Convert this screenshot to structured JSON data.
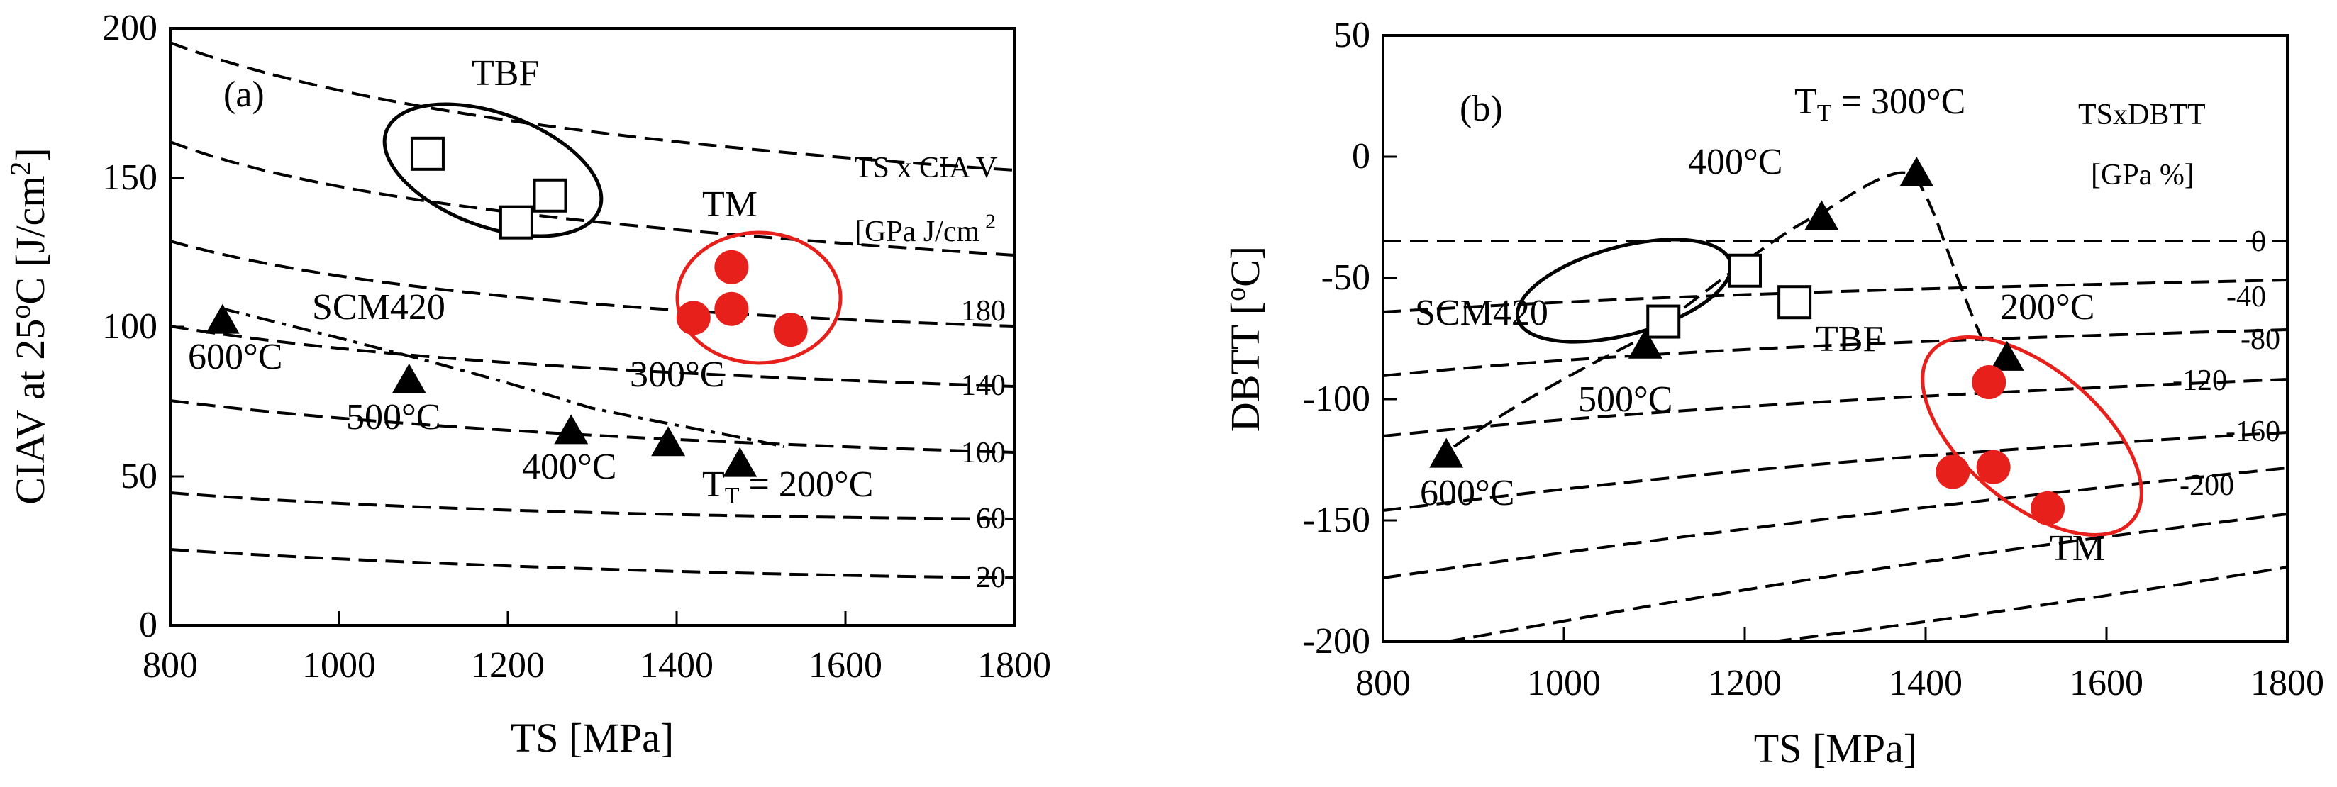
{
  "chart_data": [
    {
      "panel": "(a)",
      "type": "scatter",
      "xlabel": "TS [MPa]",
      "ylabel": "CIAV at 25oC [J/cm2]",
      "ylabel_parts": {
        "pre": "CIAV at 25",
        "deg": "o",
        "mid": "C [J/cm",
        "sup": "2",
        "post": "]"
      },
      "xlim": [
        800,
        1800
      ],
      "ylim": [
        0,
        200
      ],
      "xticks": [
        "800",
        "1000",
        "1200",
        "1400",
        "1600",
        "1800"
      ],
      "yticks": [
        "0",
        "50",
        "100",
        "150",
        "200"
      ],
      "series": [
        {
          "name": "SCM420",
          "marker": "filled-triangle",
          "points": [
            {
              "x": 862,
              "y": 102,
              "label": "600°C"
            },
            {
              "x": 1083,
              "y": 82,
              "label": "500°C"
            },
            {
              "x": 1275,
              "y": 65,
              "label": "400°C"
            },
            {
              "x": 1390,
              "y": 61,
              "label": "300°C"
            },
            {
              "x": 1475,
              "y": 54,
              "label": "TT = 200°C"
            }
          ]
        },
        {
          "name": "TBF",
          "marker": "open-square",
          "points": [
            {
              "x": 1105,
              "y": 158
            },
            {
              "x": 1210,
              "y": 135
            },
            {
              "x": 1250,
              "y": 144
            }
          ]
        },
        {
          "name": "TM",
          "marker": "filled-circle-red",
          "points": [
            {
              "x": 1465,
              "y": 120
            },
            {
              "x": 1420,
              "y": 103
            },
            {
              "x": 1465,
              "y": 106
            },
            {
              "x": 1535,
              "y": 99
            }
          ]
        }
      ],
      "isolines": {
        "title_line1": "TS x CIA V",
        "title_line2": "[GPa J/cm",
        "title_sup": "2",
        "labels": [
          "20",
          "60",
          "100",
          "140",
          "180"
        ]
      },
      "annotations": {
        "tbf": "TBF",
        "tm": "TM",
        "scm": "SCM420",
        "t600": "600°C",
        "t500": "500°C",
        "t400": "400°C",
        "t300": "300°C",
        "t200_prefix": "T",
        "t200_sub": "T",
        "t200_suffix": " = 200°C"
      }
    },
    {
      "panel": "(b)",
      "type": "scatter",
      "xlabel": "TS [MPa]",
      "ylabel": "DBTT [oC]",
      "ylabel_parts": {
        "pre": "DBTT [",
        "deg": "o",
        "post": "C]"
      },
      "xlim": [
        800,
        1800
      ],
      "ylim": [
        -200,
        50
      ],
      "xticks": [
        "800",
        "1000",
        "1200",
        "1400",
        "1600",
        "1800"
      ],
      "yticks": [
        "-200",
        "-150",
        "-100",
        "-50",
        "0",
        "50"
      ],
      "series": [
        {
          "name": "SCM420",
          "marker": "filled-triangle",
          "points": [
            {
              "x": 870,
              "y": -123,
              "label": "600°C"
            },
            {
              "x": 1090,
              "y": -78,
              "label": "500°C"
            },
            {
              "x": 1285,
              "y": -25,
              "label": "400°C"
            },
            {
              "x": 1390,
              "y": -7,
              "label": "TT = 300°C"
            },
            {
              "x": 1490,
              "y": -83,
              "label": "200°C"
            }
          ]
        },
        {
          "name": "TBF",
          "marker": "open-square",
          "points": [
            {
              "x": 1110,
              "y": -68
            },
            {
              "x": 1200,
              "y": -47
            },
            {
              "x": 1255,
              "y": -60
            }
          ]
        },
        {
          "name": "TM",
          "marker": "filled-circle-red",
          "points": [
            {
              "x": 1470,
              "y": -93
            },
            {
              "x": 1430,
              "y": -130
            },
            {
              "x": 1475,
              "y": -128
            },
            {
              "x": 1535,
              "y": -145
            }
          ]
        }
      ],
      "isolines": {
        "title_line1": "TSxDBTT",
        "title_line2": "[GPa %]",
        "labels": [
          "0",
          "-40",
          "-80",
          "-120",
          "-160",
          "-200"
        ]
      },
      "annotations": {
        "tbf": "TBF",
        "tm": "TM",
        "scm": "SCM420",
        "t600": "600°C",
        "t500": "500°C",
        "t400": "400°C",
        "t200": "200°C",
        "t300_prefix": "T",
        "t300_sub": "T",
        "t300_suffix": " = 300°C"
      }
    }
  ]
}
